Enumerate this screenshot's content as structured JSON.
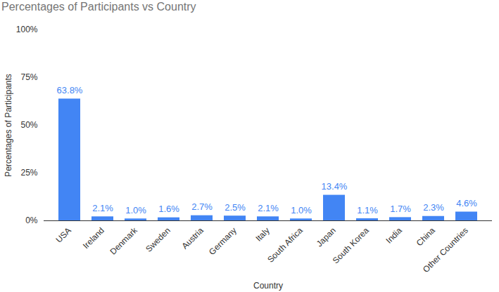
{
  "chart_data": {
    "type": "bar",
    "title": "Percentages of Participants vs Country",
    "x_label": "Country",
    "y_label": "Percentages of Participants",
    "categories": [
      "USA",
      "Ireland",
      "Denmark",
      "Sweden",
      "Austria",
      "Germany",
      "Italy",
      "South Africa",
      "Japan",
      "South Korea",
      "India",
      "China",
      "Other Countries"
    ],
    "values": [
      63.8,
      2.1,
      1.0,
      1.6,
      2.7,
      2.5,
      2.1,
      1.0,
      13.4,
      1.1,
      1.7,
      2.3,
      4.6
    ],
    "value_labels": [
      "63.8%",
      "2.1%",
      "1.0%",
      "1.6%",
      "2.7%",
      "2.5%",
      "2.1%",
      "1.0%",
      "13.4%",
      "1.1%",
      "1.7%",
      "2.3%",
      "4.6%"
    ],
    "color": "#4285f4",
    "ylim": [
      0,
      100
    ],
    "yticks": [
      {
        "value": 0,
        "label": "0%"
      },
      {
        "value": 25,
        "label": "25%"
      },
      {
        "value": 50,
        "label": "50%"
      },
      {
        "value": 75,
        "label": "75%"
      },
      {
        "value": 100,
        "label": "100%"
      }
    ],
    "grid": false,
    "data_labels": true
  }
}
